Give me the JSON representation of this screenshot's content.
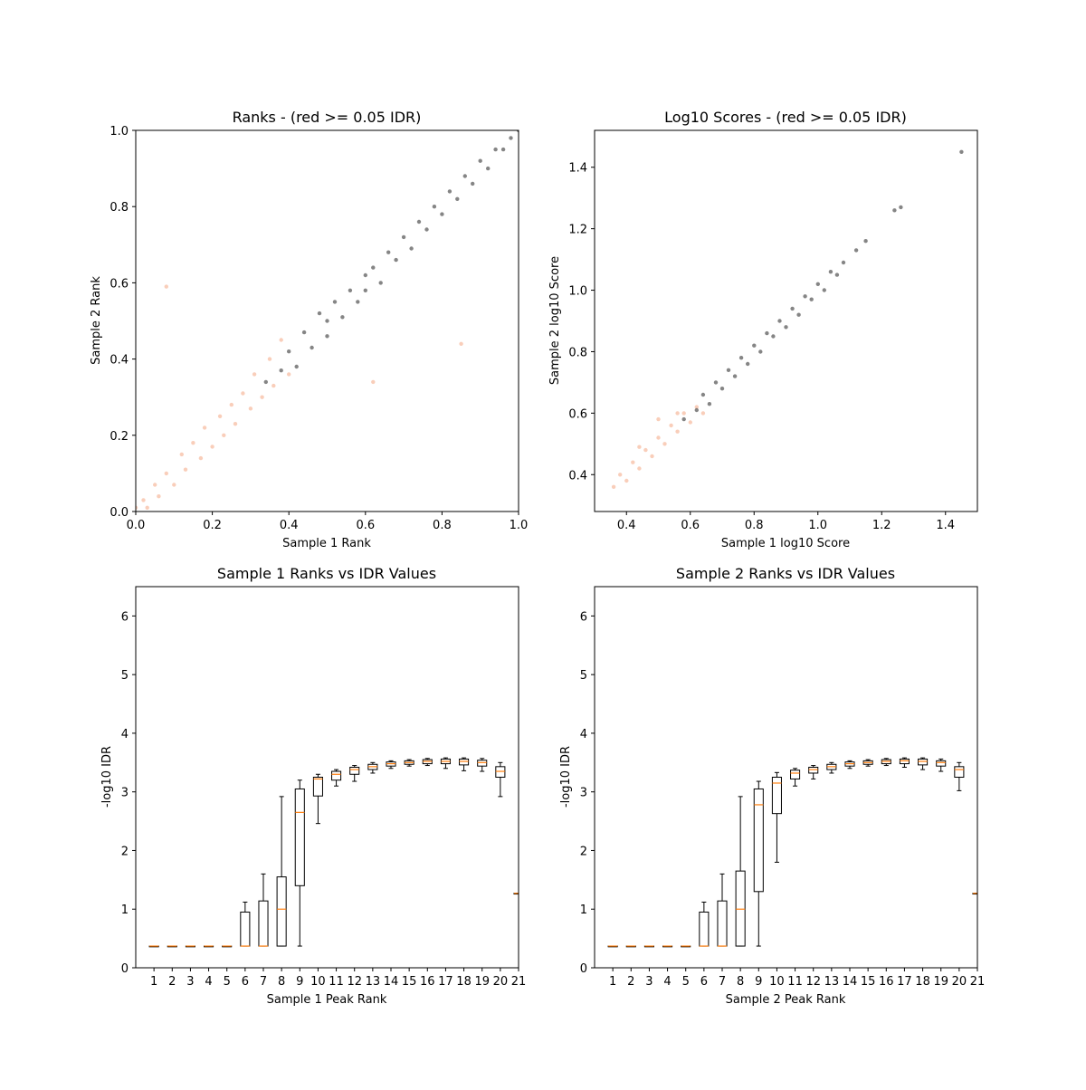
{
  "chart_data": [
    {
      "type": "scatter",
      "title": "Ranks - (red >= 0.05 IDR)",
      "xlabel": "Sample 1 Rank",
      "ylabel": "Sample 2 Rank",
      "xlim": [
        0,
        1.0
      ],
      "ylim": [
        0,
        1.0
      ],
      "xticks": [
        "0.0",
        "0.2",
        "0.4",
        "0.6",
        "0.8",
        "1.0"
      ],
      "yticks": [
        "0.0",
        "0.2",
        "0.4",
        "0.6",
        "0.8",
        "1.0"
      ],
      "grid": false,
      "colors": {
        "pass": "#333333",
        "fail": "#f4a582"
      },
      "series": [
        {
          "values": [
            [
              0.34,
              0.34
            ],
            [
              0.38,
              0.37
            ],
            [
              0.4,
              0.42
            ],
            [
              0.42,
              0.38
            ],
            [
              0.44,
              0.47
            ],
            [
              0.46,
              0.43
            ],
            [
              0.48,
              0.52
            ],
            [
              0.5,
              0.46
            ],
            [
              0.5,
              0.5
            ],
            [
              0.52,
              0.55
            ],
            [
              0.54,
              0.51
            ],
            [
              0.56,
              0.58
            ],
            [
              0.58,
              0.55
            ],
            [
              0.6,
              0.62
            ],
            [
              0.6,
              0.58
            ],
            [
              0.62,
              0.64
            ],
            [
              0.64,
              0.6
            ],
            [
              0.66,
              0.68
            ],
            [
              0.68,
              0.66
            ],
            [
              0.7,
              0.72
            ],
            [
              0.72,
              0.69
            ],
            [
              0.74,
              0.76
            ],
            [
              0.76,
              0.74
            ],
            [
              0.78,
              0.8
            ],
            [
              0.8,
              0.78
            ],
            [
              0.82,
              0.84
            ],
            [
              0.84,
              0.82
            ],
            [
              0.86,
              0.88
            ],
            [
              0.88,
              0.86
            ],
            [
              0.9,
              0.92
            ],
            [
              0.92,
              0.9
            ],
            [
              0.94,
              0.95
            ],
            [
              0.96,
              0.95
            ],
            [
              0.98,
              0.98
            ],
            [
              1.0,
              1.0
            ]
          ]
        },
        {
          "values": [
            [
              0.0,
              0.01
            ],
            [
              0.02,
              0.03
            ],
            [
              0.03,
              0.01
            ],
            [
              0.05,
              0.07
            ],
            [
              0.06,
              0.04
            ],
            [
              0.08,
              0.1
            ],
            [
              0.1,
              0.07
            ],
            [
              0.12,
              0.15
            ],
            [
              0.13,
              0.11
            ],
            [
              0.15,
              0.18
            ],
            [
              0.17,
              0.14
            ],
            [
              0.18,
              0.22
            ],
            [
              0.2,
              0.17
            ],
            [
              0.22,
              0.25
            ],
            [
              0.23,
              0.2
            ],
            [
              0.25,
              0.28
            ],
            [
              0.26,
              0.23
            ],
            [
              0.28,
              0.31
            ],
            [
              0.3,
              0.27
            ],
            [
              0.31,
              0.36
            ],
            [
              0.33,
              0.3
            ],
            [
              0.35,
              0.4
            ],
            [
              0.36,
              0.33
            ],
            [
              0.38,
              0.45
            ],
            [
              0.4,
              0.36
            ],
            [
              0.08,
              0.59
            ],
            [
              0.62,
              0.34
            ],
            [
              0.85,
              0.44
            ]
          ]
        }
      ]
    },
    {
      "type": "scatter",
      "title": "Log10 Scores - (red >= 0.05 IDR)",
      "xlabel": "Sample 1 log10 Score",
      "ylabel": "Sample 2 log10 Score",
      "xlim": [
        0.3,
        1.5
      ],
      "ylim": [
        0.28,
        1.52
      ],
      "xticks": [
        "0.4",
        "0.6",
        "0.8",
        "1.0",
        "1.2",
        "1.4"
      ],
      "yticks": [
        "0.4",
        "0.6",
        "0.8",
        "1.0",
        "1.2",
        "1.4"
      ],
      "grid": false,
      "colors": {
        "pass": "#333333",
        "fail": "#f4a582"
      },
      "series": [
        {
          "values": [
            [
              0.58,
              0.58
            ],
            [
              0.62,
              0.61
            ],
            [
              0.64,
              0.66
            ],
            [
              0.66,
              0.63
            ],
            [
              0.68,
              0.7
            ],
            [
              0.7,
              0.68
            ],
            [
              0.72,
              0.74
            ],
            [
              0.74,
              0.72
            ],
            [
              0.76,
              0.78
            ],
            [
              0.78,
              0.76
            ],
            [
              0.8,
              0.82
            ],
            [
              0.82,
              0.8
            ],
            [
              0.84,
              0.86
            ],
            [
              0.86,
              0.85
            ],
            [
              0.88,
              0.9
            ],
            [
              0.9,
              0.88
            ],
            [
              0.92,
              0.94
            ],
            [
              0.94,
              0.92
            ],
            [
              0.96,
              0.98
            ],
            [
              0.98,
              0.97
            ],
            [
              1.0,
              1.02
            ],
            [
              1.02,
              1.0
            ],
            [
              1.04,
              1.06
            ],
            [
              1.06,
              1.05
            ],
            [
              1.08,
              1.09
            ],
            [
              1.12,
              1.13
            ],
            [
              1.15,
              1.16
            ],
            [
              1.24,
              1.26
            ],
            [
              1.26,
              1.27
            ],
            [
              1.45,
              1.45
            ]
          ]
        },
        {
          "values": [
            [
              0.36,
              0.36
            ],
            [
              0.38,
              0.4
            ],
            [
              0.4,
              0.38
            ],
            [
              0.42,
              0.44
            ],
            [
              0.44,
              0.42
            ],
            [
              0.46,
              0.48
            ],
            [
              0.48,
              0.46
            ],
            [
              0.5,
              0.52
            ],
            [
              0.52,
              0.5
            ],
            [
              0.54,
              0.56
            ],
            [
              0.56,
              0.54
            ],
            [
              0.58,
              0.6
            ],
            [
              0.6,
              0.57
            ],
            [
              0.62,
              0.62
            ],
            [
              0.44,
              0.49
            ],
            [
              0.5,
              0.58
            ],
            [
              0.56,
              0.6
            ],
            [
              0.64,
              0.6
            ]
          ]
        }
      ]
    },
    {
      "type": "box",
      "title": "Sample 1 Ranks vs IDR Values",
      "xlabel": "Sample 1 Peak Rank",
      "ylabel": "-log10 IDR",
      "xlim": [
        0,
        21
      ],
      "ylim": [
        0,
        6.5
      ],
      "categories": [
        "1",
        "2",
        "3",
        "4",
        "5",
        "6",
        "7",
        "8",
        "9",
        "10",
        "11",
        "12",
        "13",
        "14",
        "15",
        "16",
        "17",
        "18",
        "19",
        "20",
        "21"
      ],
      "yticks": [
        "0",
        "1",
        "2",
        "3",
        "4",
        "5",
        "6"
      ],
      "boxes": [
        {
          "whislo": 0.37,
          "q1": 0.37,
          "med": 0.37,
          "q3": 0.37,
          "whishi": 0.37
        },
        {
          "whislo": 0.37,
          "q1": 0.37,
          "med": 0.37,
          "q3": 0.37,
          "whishi": 0.37
        },
        {
          "whislo": 0.37,
          "q1": 0.37,
          "med": 0.37,
          "q3": 0.37,
          "whishi": 0.37
        },
        {
          "whislo": 0.37,
          "q1": 0.37,
          "med": 0.37,
          "q3": 0.37,
          "whishi": 0.37
        },
        {
          "whislo": 0.37,
          "q1": 0.37,
          "med": 0.37,
          "q3": 0.37,
          "whishi": 0.37
        },
        {
          "whislo": 0.37,
          "q1": 0.37,
          "med": 0.37,
          "q3": 0.95,
          "whishi": 1.12
        },
        {
          "whislo": 0.37,
          "q1": 0.37,
          "med": 0.37,
          "q3": 1.14,
          "whishi": 1.6
        },
        {
          "whislo": 0.37,
          "q1": 0.37,
          "med": 1.0,
          "q3": 1.55,
          "whishi": 2.92
        },
        {
          "whislo": 0.37,
          "q1": 1.4,
          "med": 2.65,
          "q3": 3.05,
          "whishi": 3.2
        },
        {
          "whislo": 2.46,
          "q1": 2.93,
          "med": 3.22,
          "q3": 3.25,
          "whishi": 3.3
        },
        {
          "whislo": 3.1,
          "q1": 3.2,
          "med": 3.3,
          "q3": 3.35,
          "whishi": 3.38
        },
        {
          "whislo": 3.18,
          "q1": 3.3,
          "med": 3.38,
          "q3": 3.42,
          "whishi": 3.45
        },
        {
          "whislo": 3.32,
          "q1": 3.38,
          "med": 3.43,
          "q3": 3.47,
          "whishi": 3.5
        },
        {
          "whislo": 3.4,
          "q1": 3.44,
          "med": 3.48,
          "q3": 3.51,
          "whishi": 3.53
        },
        {
          "whislo": 3.44,
          "q1": 3.47,
          "med": 3.5,
          "q3": 3.53,
          "whishi": 3.55
        },
        {
          "whislo": 3.45,
          "q1": 3.48,
          "med": 3.52,
          "q3": 3.55,
          "whishi": 3.57
        },
        {
          "whislo": 3.4,
          "q1": 3.48,
          "med": 3.52,
          "q3": 3.56,
          "whishi": 3.58
        },
        {
          "whislo": 3.36,
          "q1": 3.46,
          "med": 3.52,
          "q3": 3.56,
          "whishi": 3.58
        },
        {
          "whislo": 3.35,
          "q1": 3.44,
          "med": 3.5,
          "q3": 3.54,
          "whishi": 3.57
        },
        {
          "whislo": 2.92,
          "q1": 3.25,
          "med": 3.35,
          "q3": 3.43,
          "whishi": 3.5
        },
        {
          "whislo": 1.27,
          "q1": 1.27,
          "med": 1.27,
          "q3": 1.27,
          "whishi": 1.27
        }
      ]
    },
    {
      "type": "box",
      "title": "Sample 2 Ranks vs IDR Values",
      "xlabel": "Sample 2 Peak Rank",
      "ylabel": "-log10 IDR",
      "xlim": [
        0,
        21
      ],
      "ylim": [
        0,
        6.5
      ],
      "categories": [
        "1",
        "2",
        "3",
        "4",
        "5",
        "6",
        "7",
        "8",
        "9",
        "10",
        "11",
        "12",
        "13",
        "14",
        "15",
        "16",
        "17",
        "18",
        "19",
        "20",
        "21"
      ],
      "yticks": [
        "0",
        "1",
        "2",
        "3",
        "4",
        "5",
        "6"
      ],
      "boxes": [
        {
          "whislo": 0.37,
          "q1": 0.37,
          "med": 0.37,
          "q3": 0.37,
          "whishi": 0.37
        },
        {
          "whislo": 0.37,
          "q1": 0.37,
          "med": 0.37,
          "q3": 0.37,
          "whishi": 0.37
        },
        {
          "whislo": 0.37,
          "q1": 0.37,
          "med": 0.37,
          "q3": 0.37,
          "whishi": 0.37
        },
        {
          "whislo": 0.37,
          "q1": 0.37,
          "med": 0.37,
          "q3": 0.37,
          "whishi": 0.37
        },
        {
          "whislo": 0.37,
          "q1": 0.37,
          "med": 0.37,
          "q3": 0.37,
          "whishi": 0.37
        },
        {
          "whislo": 0.37,
          "q1": 0.37,
          "med": 0.37,
          "q3": 0.95,
          "whishi": 1.12
        },
        {
          "whislo": 0.37,
          "q1": 0.37,
          "med": 0.37,
          "q3": 1.14,
          "whishi": 1.6
        },
        {
          "whislo": 0.37,
          "q1": 0.37,
          "med": 1.0,
          "q3": 1.65,
          "whishi": 2.92
        },
        {
          "whislo": 0.37,
          "q1": 1.3,
          "med": 2.78,
          "q3": 3.05,
          "whishi": 3.18
        },
        {
          "whislo": 1.8,
          "q1": 2.63,
          "med": 3.15,
          "q3": 3.25,
          "whishi": 3.33
        },
        {
          "whislo": 3.1,
          "q1": 3.22,
          "med": 3.32,
          "q3": 3.37,
          "whishi": 3.4
        },
        {
          "whislo": 3.22,
          "q1": 3.32,
          "med": 3.38,
          "q3": 3.42,
          "whishi": 3.45
        },
        {
          "whislo": 3.32,
          "q1": 3.38,
          "med": 3.43,
          "q3": 3.47,
          "whishi": 3.5
        },
        {
          "whislo": 3.4,
          "q1": 3.44,
          "med": 3.48,
          "q3": 3.51,
          "whishi": 3.53
        },
        {
          "whislo": 3.44,
          "q1": 3.47,
          "med": 3.5,
          "q3": 3.53,
          "whishi": 3.55
        },
        {
          "whislo": 3.45,
          "q1": 3.48,
          "med": 3.52,
          "q3": 3.55,
          "whishi": 3.57
        },
        {
          "whislo": 3.42,
          "q1": 3.48,
          "med": 3.53,
          "q3": 3.56,
          "whishi": 3.58
        },
        {
          "whislo": 3.38,
          "q1": 3.46,
          "med": 3.52,
          "q3": 3.56,
          "whishi": 3.58
        },
        {
          "whislo": 3.35,
          "q1": 3.44,
          "med": 3.5,
          "q3": 3.53,
          "whishi": 3.56
        },
        {
          "whislo": 3.02,
          "q1": 3.25,
          "med": 3.38,
          "q3": 3.43,
          "whishi": 3.5
        },
        {
          "whislo": 1.27,
          "q1": 1.27,
          "med": 1.27,
          "q3": 1.27,
          "whishi": 1.27
        }
      ]
    }
  ]
}
